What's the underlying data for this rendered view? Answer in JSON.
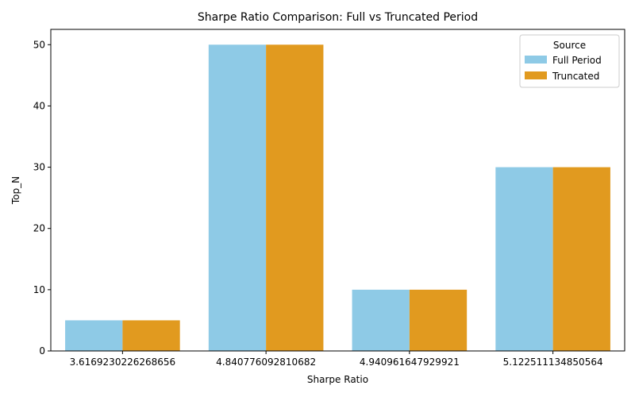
{
  "chart_data": {
    "type": "bar",
    "title": "Sharpe Ratio Comparison: Full vs Truncated Period",
    "xlabel": "Sharpe Ratio",
    "ylabel": "Top_N",
    "categories": [
      "3.6169230226268656",
      "4.840776092810682",
      "4.940961647929921",
      "5.122511134850564"
    ],
    "series": [
      {
        "name": "Full Period",
        "color": "#8ecae6",
        "values": [
          5,
          50,
          10,
          30
        ]
      },
      {
        "name": "Truncated",
        "color": "#e19a1f",
        "values": [
          5,
          50,
          10,
          30
        ]
      }
    ],
    "ylim": [
      0,
      52.5
    ],
    "yticks": [
      0,
      10,
      20,
      30,
      40,
      50
    ],
    "legend": {
      "title": "Source",
      "placement": "top-right"
    },
    "grid": false
  }
}
